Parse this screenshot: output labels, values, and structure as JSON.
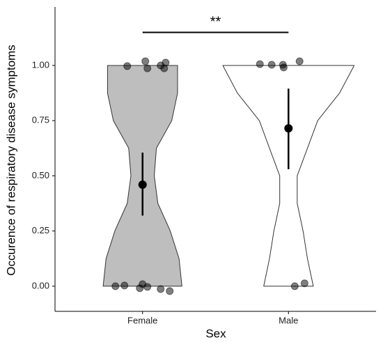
{
  "chart_data": {
    "type": "violin",
    "x_label": "Sex",
    "y_label": "Occurence of respiratory disease symptoms",
    "categories": [
      "Female",
      "Male"
    ],
    "xlim": [
      0.4,
      2.6
    ],
    "ylim": [
      -0.114,
      1.265
    ],
    "yticks": [
      {
        "value": 0,
        "label": "0.00"
      },
      {
        "value": 0.25,
        "label": "0.25"
      },
      {
        "value": 0.5,
        "label": "0.50"
      },
      {
        "value": 0.75,
        "label": "0.75"
      },
      {
        "value": 1,
        "label": "1.00"
      }
    ],
    "density_y": [
      0,
      0.125,
      0.25,
      0.375,
      0.5,
      0.625,
      0.75,
      0.875,
      1
    ],
    "groups": [
      {
        "fill": "#bebebe",
        "density": [
          0.27,
          0.25,
          0.19,
          0.105,
          0.08,
          0.095,
          0.2,
          0.24,
          0.24
        ],
        "points": {
          "x": [
            -0.105,
            0.019,
            0.033,
            0.124,
            0.148,
            0.158,
            -0.186,
            -0.124,
            -0.019,
            0,
            0.033,
            0.124,
            0.186
          ],
          "y": [
            0.997,
            1.019,
            0.987,
            1.0,
            0.987,
            1.013,
            0,
            0.003,
            -0.009,
            0.009,
            -0.003,
            -0.013,
            -0.022
          ]
        },
        "mean": 0.46,
        "ci": [
          0.32,
          0.605
        ]
      },
      {
        "fill": "#ffffff",
        "density": [
          0.17,
          0.13,
          0.1,
          0.06,
          0.06,
          0.13,
          0.2,
          0.35,
          0.45
        ],
        "points": {
          "x": [
            -0.196,
            -0.115,
            -0.038,
            -0.033,
            0.076,
            0.043,
            0.11
          ],
          "y": [
            1.006,
            1.003,
            1.003,
            0.991,
            1.019,
            0,
            0.013
          ]
        },
        "mean": 0.715,
        "ci": [
          0.53,
          0.895
        ]
      }
    ],
    "annotation": {
      "text": "**",
      "y": 1.15
    }
  }
}
